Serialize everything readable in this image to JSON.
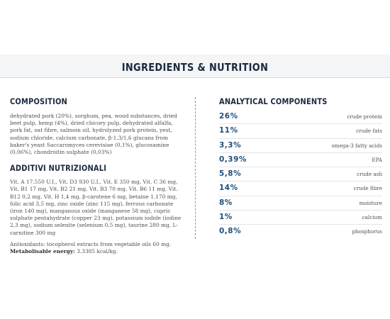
{
  "title": "INGREDIENTS & NUTRITION",
  "composition": {
    "heading": "COMPOSITION",
    "text": "dehydrated pork (20%), sorghum, pea, wood substances, dried beet pulp, hemp (4%), dried chicory pulp, dehydrated alfalfa, pork fat, oat fibre, salmoin oil, hydrolyzed pork protein, yest, sodium chloride, calcium carbonate, β-1,3/1,6 glucans from baker's yeast Saccaromyces cerevisiae (0,1%), glucosamine (0,06%), chondroitin sulphate (0,03%)"
  },
  "additives": {
    "heading": "ADDITIVI NUTRIZIONALI",
    "text": "Vit. A 17.550 U.I., Vit. D3 930 U.I., Vit. E 350 mg, Vit. C 36 mg, Vit. B1 17 mg, Vit. B2 21 mg, Vit. B3 70 mg, Vit. B6 11 mg, Vit. B12 0,2 mg, Vit. H 1,4 mg, β-carotene 6 mg, betaine 1.170 mg, folic acid 3,5 mg, zinc oxide (zinc 115 mg), ferrous carbonate (iron 140 mg), manganous oxide (manganese 58 mg), cupric sulphate pentahydrate (copper 23 mg), potassium iodide (iodine 2,3 mg), sodium selenite (selenium 0,5 mg), taurine 280 mg, L-carnitine 300 mg",
    "antioxidants": "Antioxidants: tocopherol extracts from vegetable oils 60 mg.",
    "energy_label": "Metabolisable energy:",
    "energy_value": " 3.3385 kcal/kg."
  },
  "analytical": {
    "heading": "ANALYTICAL COMPONENTS",
    "rows": [
      {
        "value": "26%",
        "label": "crude protein"
      },
      {
        "value": "11%",
        "label": "crude fats"
      },
      {
        "value": "3,3%",
        "label": "omega-3 fatty acids"
      },
      {
        "value": "0,39%",
        "label": "EPA"
      },
      {
        "value": "5,8%",
        "label": "crude ash"
      },
      {
        "value": "14%",
        "label": "crude fibre"
      },
      {
        "value": "8%",
        "label": "moisture"
      },
      {
        "value": "1%",
        "label": "calcium"
      },
      {
        "value": "0,8%",
        "label": "phosphorus"
      }
    ]
  }
}
